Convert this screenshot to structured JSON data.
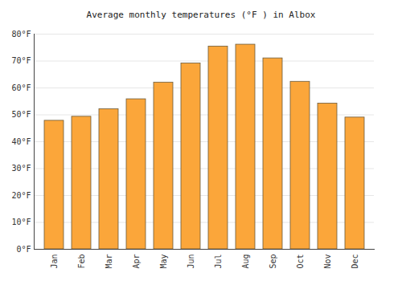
{
  "chart_data": {
    "type": "bar",
    "title": "Average monthly temperatures (°F ) in Albox",
    "categories": [
      "Jan",
      "Feb",
      "Mar",
      "Apr",
      "May",
      "Jun",
      "Jul",
      "Aug",
      "Sep",
      "Oct",
      "Nov",
      "Dec"
    ],
    "values": [
      47.8,
      49.3,
      52.1,
      55.8,
      62.0,
      69.1,
      75.4,
      76.1,
      71.0,
      62.3,
      54.2,
      49.0
    ],
    "color": "#fba63a",
    "ylim": [
      0,
      80
    ],
    "yticks": [
      {
        "value": 0,
        "label": "0°F"
      },
      {
        "value": 10,
        "label": "10°F"
      },
      {
        "value": 20,
        "label": "20°F"
      },
      {
        "value": 30,
        "label": "30°F"
      },
      {
        "value": 40,
        "label": "40°F"
      },
      {
        "value": 50,
        "label": "50°F"
      },
      {
        "value": 60,
        "label": "60°F"
      },
      {
        "value": 70,
        "label": "70°F"
      },
      {
        "value": 80,
        "label": "80°F"
      }
    ],
    "grid": true
  }
}
